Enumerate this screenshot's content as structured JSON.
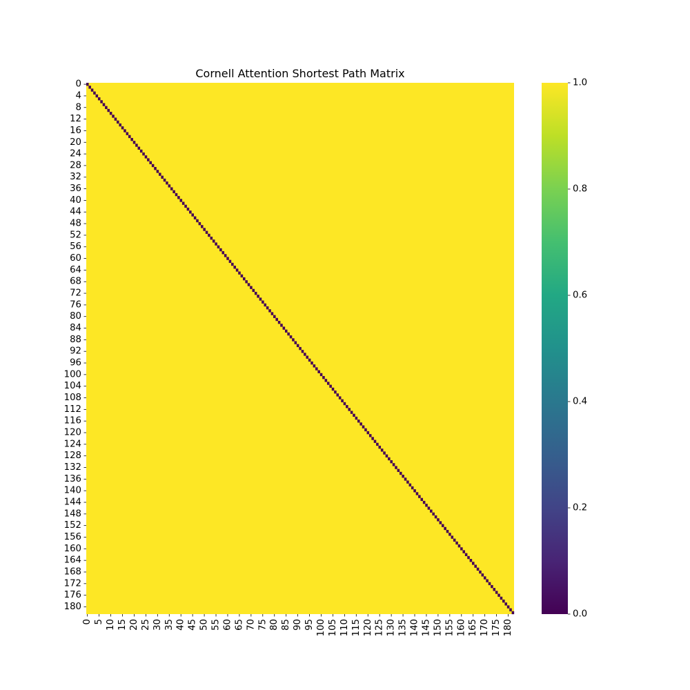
{
  "chart_data": {
    "type": "heatmap",
    "title": "Cornell Attention Shortest Path Matrix",
    "xlabel": "",
    "ylabel": "",
    "matrix_size": 183,
    "description_values": "identity-like pattern: 0 on diagonal, 1 elsewhere",
    "diagonal_value": 0,
    "off_diagonal_value": 1,
    "x_tick_step": 5,
    "y_tick_step": 4,
    "x_tick_labels": [
      "0",
      "5",
      "10",
      "15",
      "20",
      "25",
      "30",
      "35",
      "40",
      "45",
      "50",
      "55",
      "60",
      "65",
      "70",
      "75",
      "80",
      "85",
      "90",
      "95",
      "100",
      "105",
      "110",
      "115",
      "120",
      "125",
      "130",
      "135",
      "140",
      "145",
      "150",
      "155",
      "160",
      "165",
      "170",
      "175",
      "180"
    ],
    "y_tick_labels": [
      "0",
      "4",
      "8",
      "12",
      "16",
      "20",
      "24",
      "28",
      "32",
      "36",
      "40",
      "44",
      "48",
      "52",
      "56",
      "60",
      "64",
      "68",
      "72",
      "76",
      "80",
      "84",
      "88",
      "92",
      "96",
      "100",
      "104",
      "108",
      "112",
      "116",
      "120",
      "124",
      "128",
      "132",
      "136",
      "140",
      "144",
      "148",
      "152",
      "156",
      "160",
      "164",
      "168",
      "172",
      "176",
      "180"
    ],
    "colorbar": {
      "colormap": "viridis",
      "vmin": 0.0,
      "vmax": 1.0,
      "tick_labels": [
        "0.0",
        "0.2",
        "0.4",
        "0.6",
        "0.8",
        "1.0"
      ]
    },
    "colors": {
      "high": "#fde725",
      "low": "#440154"
    }
  }
}
